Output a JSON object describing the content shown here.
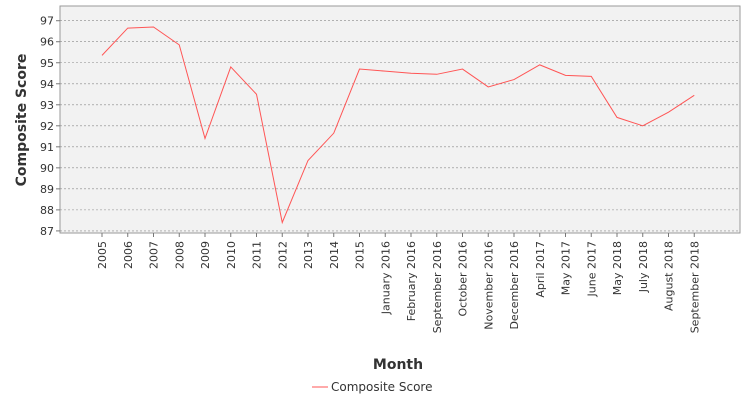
{
  "chart_data": {
    "type": "line",
    "title": "",
    "xlabel": "Month",
    "ylabel": "Composite Score",
    "ylim": [
      86.9,
      97.7
    ],
    "yticks": [
      87,
      88,
      89,
      90,
      91,
      92,
      93,
      94,
      95,
      96,
      97
    ],
    "grid": true,
    "legend": "bottom-center",
    "categories": [
      "2005",
      "2006",
      "2007",
      "2008",
      "2009",
      "2010",
      "2011",
      "2012",
      "2013",
      "2014",
      "2015",
      "January 2016",
      "February 2016",
      "September 2016",
      "October 2016",
      "November 2016",
      "December 2016",
      "April 2017",
      "May 2017",
      "June 2017",
      "May 2018",
      "July 2018",
      "August 2018",
      "September 2018"
    ],
    "series": [
      {
        "name": "Composite Score",
        "color": "#ff5555",
        "values": [
          95.35,
          96.65,
          96.7,
          95.85,
          91.4,
          94.8,
          93.5,
          87.4,
          90.35,
          91.65,
          94.7,
          94.6,
          94.5,
          94.45,
          94.7,
          93.85,
          94.2,
          94.9,
          94.4,
          94.35,
          92.4,
          92.0,
          92.65,
          93.45
        ]
      }
    ]
  }
}
